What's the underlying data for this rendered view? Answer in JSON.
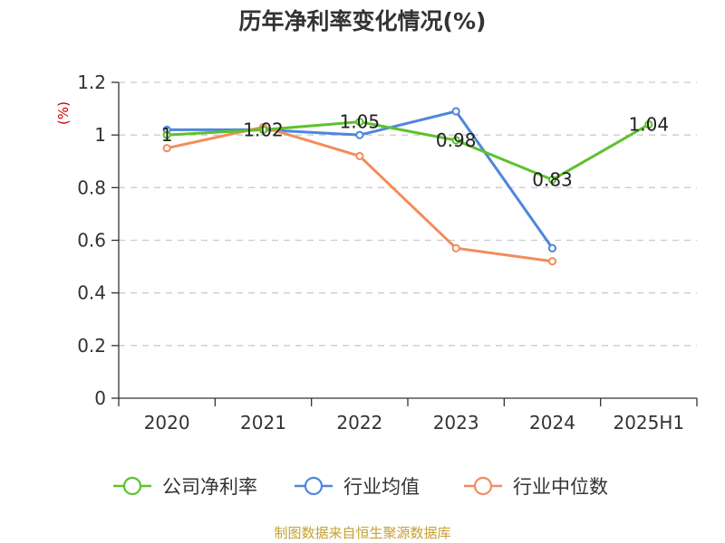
{
  "chart_data": {
    "type": "line",
    "title": "历年净利率变化情况(%)",
    "ylabel": "(%)",
    "xlabel": "",
    "categories": [
      "2020",
      "2021",
      "2022",
      "2023",
      "2024",
      "2025H1"
    ],
    "ylim": [
      0,
      1.2
    ],
    "yticks": [
      0,
      0.2,
      0.4,
      0.6,
      0.8,
      1,
      1.2
    ],
    "ytick_labels": [
      "0",
      "0.2",
      "0.4",
      "0.6",
      "0.8",
      "1",
      "1.2"
    ],
    "grid": "horizontal dashed",
    "legend_position": "bottom",
    "series": [
      {
        "name": "公司净利率",
        "color": "#5cc22e",
        "values": [
          1.0,
          1.02,
          1.05,
          0.98,
          0.83,
          1.04
        ],
        "labels": [
          "1",
          "1.02",
          "1.05",
          "0.98",
          "0.83",
          "1.04"
        ]
      },
      {
        "name": "行业均值",
        "color": "#4f86dc",
        "values": [
          1.02,
          1.02,
          1.0,
          1.09,
          0.57,
          null
        ]
      },
      {
        "name": "行业中位数",
        "color": "#f38c5b",
        "values": [
          0.95,
          1.03,
          0.92,
          0.57,
          0.52,
          null
        ]
      }
    ]
  },
  "source_note": "制图数据来自恒生聚源数据库"
}
